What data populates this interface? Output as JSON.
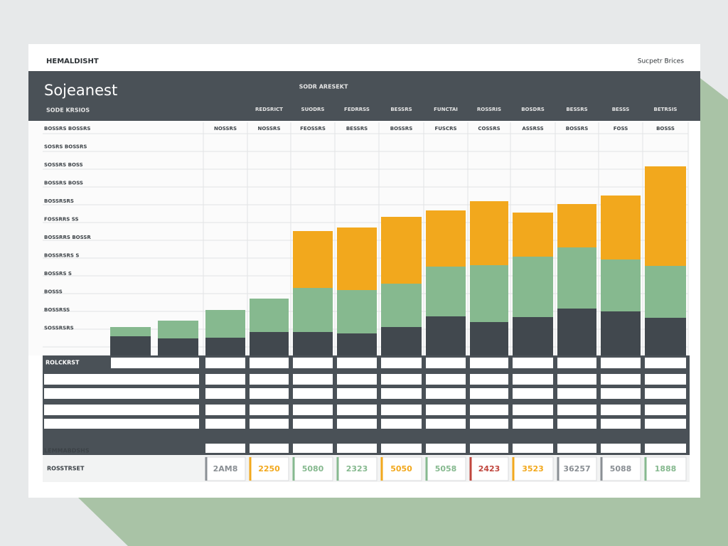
{
  "header": {
    "brand": "HEMALDISHT",
    "account": "Sucpetr Brices"
  },
  "chart_data": {
    "type": "bar",
    "stacked": true,
    "title": "Sojeanest",
    "subtitle": "SODR ARESEKT",
    "corner_label": "SODE KRSIOS",
    "column_headers": [
      "REDSRICT",
      "SUODRS",
      "FEDRRSS",
      "BESSRS",
      "FUNCTAI",
      "ROSSRIS",
      "BOSDRS",
      "BESSRS",
      "BESSS",
      "BETRSIS"
    ],
    "categories": [
      null,
      null,
      "NOSSRS",
      "NOSSRS",
      "FEOSSRS",
      "BESSRS",
      "BOSSRS",
      "FUSCRS",
      "COSSRS",
      "ASSRSS",
      "BOSSRS",
      "FOSS",
      "BOSSS"
    ],
    "row_labels": [
      "BOSSRS BOSSRS",
      "SOSRS BOSSRS",
      "SOSSRS BOSS",
      "BOSSRS BOSS",
      "BOSSRSRS",
      "FOSSRRS SS",
      "BOSSRRS BOSSR",
      "BOSSRSRS S",
      "BOSSRS S",
      "BOSSS",
      "BOSSRSS",
      "SOSSRSRS"
    ],
    "ylim": [
      0,
      325
    ],
    "series": [
      {
        "color": "#41484e",
        "values": [
          27,
          24,
          25,
          33,
          33,
          31,
          40,
          55,
          47,
          54,
          66,
          62,
          53
        ]
      },
      {
        "color": "#86b98f",
        "values": [
          13,
          25,
          39,
          47,
          62,
          61,
          61,
          70,
          80,
          85,
          86,
          73,
          73
        ]
      },
      {
        "color": "#f2a81d",
        "values": [
          0,
          0,
          0,
          0,
          80,
          88,
          94,
          79,
          90,
          62,
          61,
          90,
          140
        ]
      }
    ],
    "table_label": "ROLCKRST",
    "footer_label": "LEMMABDSHS",
    "total_label": "ROSSTRSET",
    "totals": [
      "2AM8",
      "2250",
      "5080",
      "2323",
      "5050",
      "5058",
      "2423",
      "3523",
      "36257",
      "5088",
      "1888"
    ],
    "total_colors": [
      "#8a8f94",
      "#f2a81d",
      "#86b98f",
      "#86b98f",
      "#f2a81d",
      "#86b98f",
      "#c0463e",
      "#f2a81d",
      "#8a8f94",
      "#8a8f94",
      "#86b98f"
    ]
  }
}
